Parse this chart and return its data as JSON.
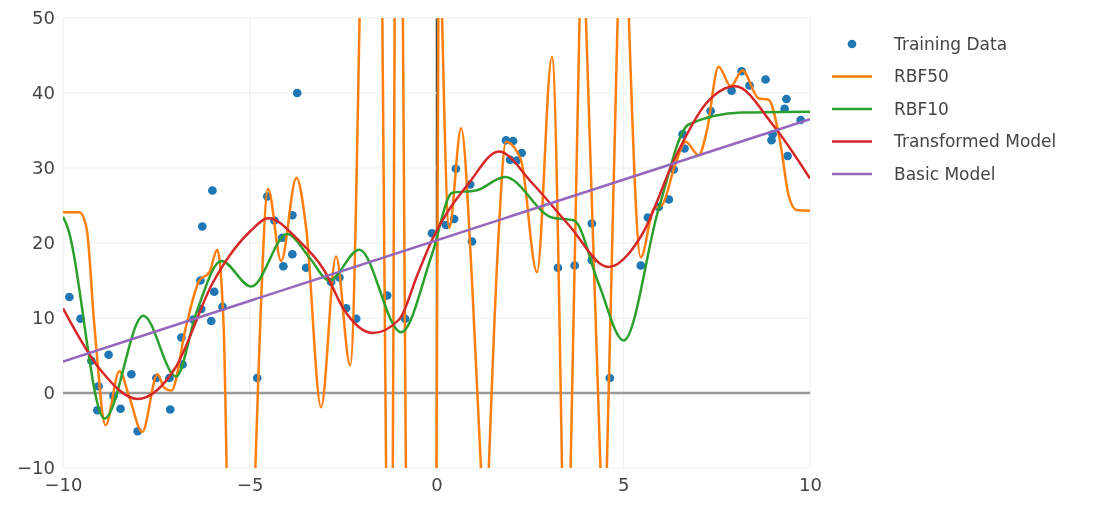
{
  "chart_data": {
    "type": "line",
    "xlim": [
      -10,
      10
    ],
    "xticks": [
      {
        "value": -10,
        "label": "−10"
      },
      {
        "value": -5,
        "label": "−5"
      },
      0,
      5,
      10
    ],
    "ylim": [
      -10,
      50
    ],
    "yticks": [
      {
        "value": -10,
        "label": "−10"
      },
      0,
      10,
      20,
      30,
      40,
      50
    ],
    "grid": true,
    "legend": "top right",
    "series": [
      {
        "name": "Training Data",
        "type": "scatter",
        "marker": "circle",
        "color": "#1f77b4",
        "x": [
          -9.83,
          -9.53,
          -9.24,
          -9.08,
          -9.05,
          -8.78,
          -8.65,
          -8.46,
          -8.17,
          -8.0,
          -7.5,
          -7.15,
          -7.13,
          -6.83,
          -6.8,
          -6.51,
          -6.32,
          -6.3,
          -6.27,
          -6.03,
          -6.0,
          -5.95,
          -5.73,
          -4.8,
          -4.53,
          -4.34,
          -4.13,
          -4.1,
          -3.86,
          -3.86,
          -3.73,
          -3.49,
          -2.82,
          -2.6,
          -2.42,
          -2.15,
          -1.32,
          -0.84,
          -0.12,
          0.25,
          0.47,
          0.52,
          0.9,
          0.95,
          1.86,
          1.97,
          2.05,
          2.15,
          2.28,
          3.25,
          3.7,
          4.16,
          4.16,
          4.64,
          5.47,
          5.66,
          5.95,
          6.22,
          6.35,
          6.59,
          6.64,
          7.34,
          7.9,
          8.17,
          8.38,
          8.81,
          8.97,
          9.0,
          9.32,
          9.37,
          9.4,
          9.75
        ],
        "values": [
          12.8,
          9.9,
          4.3,
          -2.3,
          0.9,
          5.1,
          -0.4,
          -2.1,
          2.5,
          -5.1,
          2.0,
          2.0,
          -2.2,
          7.4,
          3.8,
          9.8,
          15.0,
          11.2,
          22.2,
          9.6,
          27.0,
          13.5,
          11.5,
          2.0,
          26.2,
          23.0,
          20.7,
          16.9,
          23.7,
          18.5,
          40.0,
          16.7,
          14.8,
          15.4,
          11.3,
          9.9,
          13.0,
          9.9,
          21.3,
          22.4,
          23.2,
          29.9,
          27.8,
          20.2,
          33.7,
          31.1,
          33.6,
          31.0,
          32.0,
          16.7,
          17.0,
          22.6,
          17.7,
          2.0,
          17.0,
          23.4,
          24.8,
          25.8,
          29.8,
          34.5,
          32.6,
          37.6,
          40.3,
          42.9,
          41.0,
          41.8,
          33.7,
          34.5,
          37.9,
          39.2,
          31.6,
          36.4
        ]
      },
      {
        "name": "RBF50",
        "color": "#ff7f0e",
        "x": [
          -10,
          -9.56,
          -9.37,
          -9.16,
          -8.86,
          -8.49,
          -8.22,
          -7.88,
          -7.47,
          -7.29,
          -7.1,
          -6.7,
          -6.35,
          -6.08,
          -5.87,
          -5.7,
          -5.62,
          -5.2,
          -4.85,
          -4.75,
          -4.51,
          -4.16,
          -3.75,
          -3.49,
          -3.09,
          -2.69,
          -2.31,
          -2.06,
          -1.75,
          -1.45,
          -1.35,
          -1.25,
          -1.17,
          -1.12,
          -1.0,
          -0.9,
          -0.82,
          -0.4,
          0.0,
          0.05,
          0.1,
          0.15,
          0.34,
          0.66,
          0.95,
          1.19,
          1.3,
          1.4,
          1.65,
          1.86,
          2.26,
          2.69,
          3.09,
          3.36,
          3.48,
          3.59,
          3.83,
          3.92,
          4.0,
          4.39,
          4.48,
          4.56,
          4.85,
          5.0,
          5.15,
          5.47,
          5.82,
          6.03,
          6.4,
          6.67,
          7.02,
          7.24,
          7.55,
          7.88,
          8.19,
          8.62,
          8.89,
          9.21,
          9.43,
          9.64,
          10
        ],
        "values": [
          24.1,
          24.1,
          22.0,
          9.0,
          -4.3,
          2.9,
          -0.6,
          -5.2,
          2.5,
          0.7,
          0.3,
          9.0,
          15.0,
          16.1,
          19.1,
          9.0,
          -10,
          null,
          -10,
          5,
          27.2,
          17.6,
          28.7,
          22.0,
          -1.9,
          18.2,
          3.7,
          50,
          null,
          50,
          -10,
          null,
          -10,
          50,
          null,
          50,
          -10,
          null,
          -10,
          50,
          null,
          50,
          22.0,
          35.3,
          15,
          -10,
          null,
          -10,
          20,
          33.5,
          31.1,
          16.1,
          44.8,
          -10,
          null,
          -10,
          50,
          null,
          50,
          -10,
          null,
          -10,
          50,
          null,
          50,
          18.1,
          24.6,
          25.0,
          30.6,
          33.5,
          31.7,
          35.0,
          43.5,
          40.9,
          43.0,
          39.3,
          39.1,
          33.2,
          26.3,
          24.4,
          24.3
        ]
      },
      {
        "name": "RBF10",
        "color": "#2ca02c",
        "x": [
          -10,
          -9.9,
          -8.89,
          -7.85,
          -6.97,
          -6.43,
          -5.76,
          -4.96,
          -3.99,
          -3.41,
          -2.87,
          -2.07,
          -0.95,
          -0.12,
          0.42,
          1.06,
          1.83,
          3.09,
          3.68,
          4.34,
          5.01,
          5.95,
          6.75,
          8.17,
          10
        ],
        "values": [
          23.5,
          22.4,
          -3.4,
          10.3,
          2.2,
          10.7,
          17.6,
          14.2,
          21.2,
          18.1,
          15.0,
          19.1,
          8.1,
          18.5,
          26.7,
          27.0,
          28.8,
          23.4,
          23.0,
          14.6,
          7.0,
          24.6,
          35.8,
          37.4,
          37.5
        ]
      },
      {
        "name": "Transformed Model",
        "color": "#d62728",
        "x": [
          -10,
          -9,
          -8,
          -7,
          -6,
          -5,
          -4.5,
          -3.7,
          -3,
          -2.5,
          -1.7,
          -1,
          -0.5,
          -0.12,
          0.87,
          1.67,
          2.56,
          3.54,
          4.61,
          5.5,
          6.4,
          7.2,
          8.0,
          9.0,
          10
        ],
        "values": [
          11.3,
          3.1,
          -0.8,
          3.3,
          14.6,
          21.5,
          23.3,
          20.4,
          16.3,
          11.3,
          8.0,
          9.8,
          15.9,
          20.4,
          28.0,
          32.2,
          28.0,
          22.4,
          16.8,
          21.1,
          31.5,
          38.5,
          40.9,
          35.8,
          28.6
        ]
      },
      {
        "name": "Basic Model",
        "color": "#9467bd",
        "x": [
          -10,
          10
        ],
        "values": [
          4.2,
          36.5
        ]
      }
    ]
  }
}
